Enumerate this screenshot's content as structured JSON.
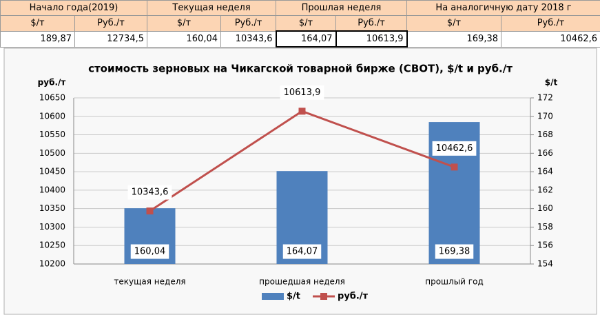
{
  "table": {
    "header": [
      "Начало года(2019)",
      "Текущая неделя",
      "Прошлая неделя",
      "На аналогичную дату 2018 г"
    ],
    "units": [
      "$/т",
      "Руб./т",
      "$/т",
      "Руб./т",
      "$/т",
      "Руб./т",
      "$/т",
      "Руб./т"
    ],
    "values": [
      "189,87",
      "12734,5",
      "160,04",
      "10343,6",
      "164,07",
      "10613,9",
      "169,38",
      "10462,6"
    ]
  },
  "chart_data": {
    "type": "combo",
    "title": "стоимость зерновых на Чикагской товарной бирже (CBOT), $/t и руб./т",
    "y_label": "руб./т",
    "y2_label": "$/t",
    "categories": [
      "текущая неделя",
      "прошедшая неделя",
      "прошлый год"
    ],
    "series": [
      {
        "name": "$/t",
        "type": "bar",
        "axis": "y2",
        "color": "#4f81bd",
        "values": [
          160.04,
          164.07,
          169.38
        ],
        "value_labels": [
          "160,04",
          "164,07",
          "169,38"
        ]
      },
      {
        "name": "руб./т",
        "type": "line",
        "color": "#c0504d",
        "values": [
          10343.6,
          10613.9,
          10462.6
        ],
        "value_labels": [
          "10343,6",
          "10613,9",
          "10462,6"
        ]
      }
    ],
    "ylim": [
      10200,
      10650
    ],
    "yticks": [
      10200,
      10250,
      10300,
      10350,
      10400,
      10450,
      10500,
      10550,
      10600,
      10650
    ],
    "y2lim": [
      154,
      172
    ],
    "y2ticks": [
      154,
      156,
      158,
      160,
      162,
      164,
      166,
      168,
      170,
      172
    ],
    "grid": true,
    "legend": "bottom"
  }
}
